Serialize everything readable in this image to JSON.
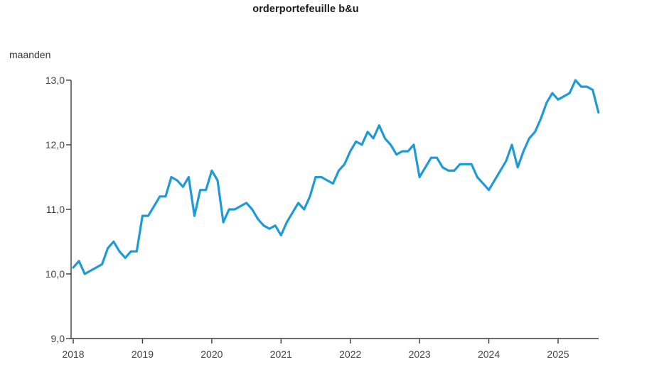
{
  "chart_data": {
    "type": "line",
    "title": "orderportefeuille b&u",
    "ylabel": "maanden",
    "series_name": "orderportefeuille b&u",
    "frequency": "monthly",
    "start_year": 2018,
    "start_month": 1,
    "end_label": "2025-08",
    "values": [
      10.1,
      10.2,
      10.0,
      10.05,
      10.1,
      10.15,
      10.4,
      10.5,
      10.35,
      10.25,
      10.35,
      10.35,
      10.9,
      10.9,
      11.05,
      11.2,
      11.2,
      11.5,
      11.45,
      11.35,
      11.5,
      10.9,
      11.3,
      11.3,
      11.6,
      11.45,
      10.8,
      11.0,
      11.0,
      11.05,
      11.1,
      11.0,
      10.85,
      10.75,
      10.7,
      10.75,
      10.6,
      10.8,
      10.95,
      11.1,
      11.0,
      11.2,
      11.5,
      11.5,
      11.45,
      11.4,
      11.6,
      11.7,
      11.9,
      12.05,
      12.0,
      12.2,
      12.1,
      12.3,
      12.1,
      12.0,
      11.85,
      11.9,
      11.9,
      12.0,
      11.5,
      11.65,
      11.8,
      11.8,
      11.65,
      11.6,
      11.6,
      11.7,
      11.7,
      11.7,
      11.5,
      11.4,
      11.3,
      11.45,
      11.6,
      11.75,
      12.0,
      11.65,
      11.9,
      12.1,
      12.2,
      12.4,
      12.65,
      12.8,
      12.7,
      12.75,
      12.8,
      13.0,
      12.9,
      12.9,
      12.85,
      12.5
    ],
    "x_tick_years": [
      2018,
      2019,
      2020,
      2021,
      2022,
      2023,
      2024,
      2025
    ],
    "x_tick_labels": [
      "2018",
      "2019",
      "2020",
      "2021",
      "2022",
      "2023",
      "2024",
      "2025"
    ],
    "y_ticks": [
      9,
      10,
      11,
      12,
      13
    ],
    "y_tick_labels": [
      "9,0",
      "10,0",
      "11,0",
      "12,0",
      "13,0"
    ],
    "ylim": [
      9,
      13
    ],
    "grid": false,
    "legend_position": "none",
    "line_color": "#1E9BD7",
    "axis_color": "#3C3C3C",
    "text_color": "#404040"
  }
}
